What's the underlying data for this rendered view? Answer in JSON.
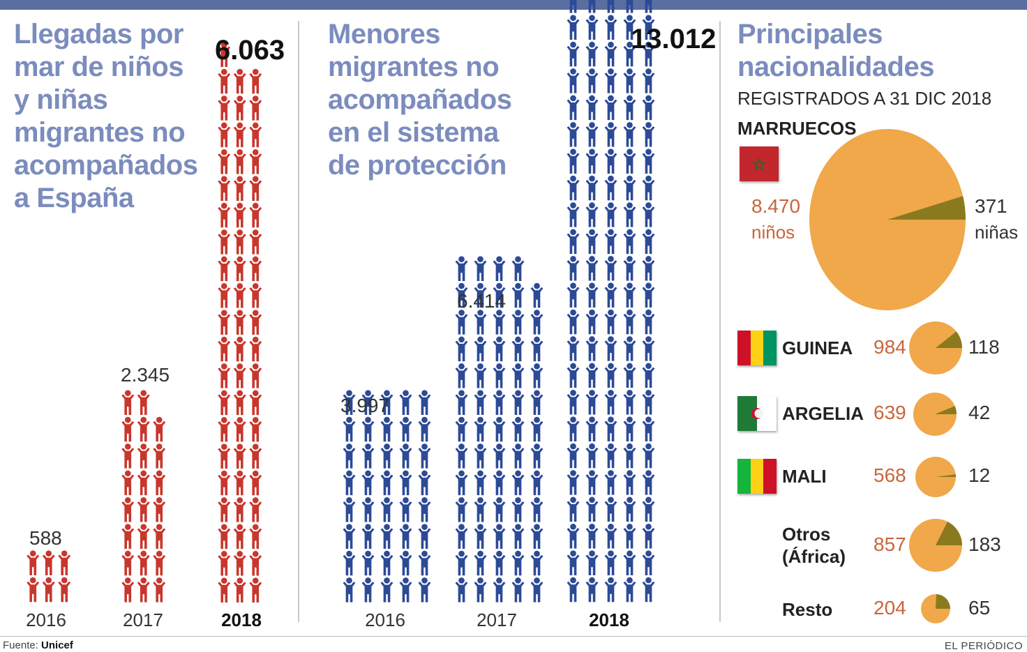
{
  "panel1": {
    "title": "Llegadas por\nmar de niños\ny niñas\nmigrantes no\nacompañados\na España"
  },
  "panel2": {
    "title": "Menores\nmigrantes no\nacompañados\nen el sistema\nde protección"
  },
  "panel3": {
    "title": "Principales\nnacionalidades",
    "subtitle": "REGISTRADOS A 31 DIC 2018",
    "morocco": {
      "name": "MARRUECOS",
      "boys": "8.470",
      "boys_label": "niños",
      "girls": "371",
      "girls_label": "niñas"
    },
    "rows": [
      {
        "name": "GUINEA",
        "boys": "984",
        "girls": "118"
      },
      {
        "name": "ARGELIA",
        "boys": "639",
        "girls": "42"
      },
      {
        "name": "MALI",
        "boys": "568",
        "girls": "12"
      },
      {
        "name": "Otros\n(África)",
        "boys": "857",
        "girls": "183"
      },
      {
        "name": "Resto",
        "boys": "204",
        "girls": "65"
      }
    ]
  },
  "footer": {
    "source_label": "Fuente:",
    "source": "Unicef",
    "credit": "EL PERIÓDICO"
  },
  "colors": {
    "arrivals_figure": "#c8372d",
    "system_figure": "#2c4a96",
    "boys_slice": "#f0a84a",
    "girls_slice": "#8a7a1e",
    "title_blue": "#7b8cbd"
  },
  "icons": {
    "person": "person-figure-icon"
  },
  "chart_data": [
    {
      "type": "bar",
      "title": "Llegadas por mar de niños y niñas migrantes no acompañados a España",
      "categories": [
        "2016",
        "2017",
        "2018"
      ],
      "values": [
        588,
        2345,
        6063
      ],
      "value_labels": [
        "588",
        "2.345",
        "6.063"
      ],
      "xlabel": "",
      "ylabel": ""
    },
    {
      "type": "bar",
      "title": "Menores migrantes no acompañados en el sistema de protección",
      "categories": [
        "2016",
        "2017",
        "2018"
      ],
      "values": [
        3997,
        6414,
        13012
      ],
      "value_labels": [
        "3.997",
        "6.414",
        "13.012"
      ],
      "xlabel": "",
      "ylabel": ""
    },
    {
      "type": "pie",
      "title": "Principales nacionalidades",
      "subtitle": "REGISTRADOS A 31 DIC 2018",
      "series_labels": [
        "niños",
        "niñas"
      ],
      "groups": [
        {
          "name": "MARRUECOS",
          "values": [
            8470,
            371
          ]
        },
        {
          "name": "GUINEA",
          "values": [
            984,
            118
          ]
        },
        {
          "name": "ARGELIA",
          "values": [
            639,
            42
          ]
        },
        {
          "name": "MALI",
          "values": [
            568,
            12
          ]
        },
        {
          "name": "Otros (África)",
          "values": [
            857,
            183
          ]
        },
        {
          "name": "Resto",
          "values": [
            204,
            65
          ]
        }
      ]
    }
  ]
}
